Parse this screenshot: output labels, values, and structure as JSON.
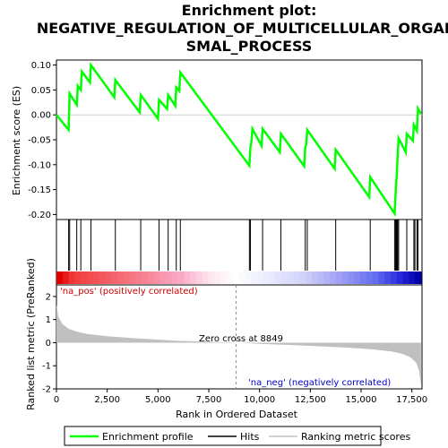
{
  "chart_data": {
    "type": "line",
    "title_lines": [
      "Enrichment plot:",
      "NEGATIVE_REGULATION_OF_MULTICELLULAR_ORGANI",
      "SMAL_PROCESS"
    ],
    "es_panel": {
      "ylabel": "Enrichment score (ES)",
      "ylim": [
        -0.21,
        0.11
      ],
      "yticks": [
        0.1,
        0.05,
        0.0,
        -0.05,
        -0.1,
        -0.15,
        -0.2
      ],
      "ytick_labels": [
        "0.10",
        "0.05",
        "0.00",
        "-0.05",
        "-0.10",
        "-0.15",
        "-0.20"
      ],
      "series": [
        {
          "name": "Enrichment profile",
          "color": "#00ff00",
          "x": [
            0,
            600,
            650,
            1000,
            1050,
            1200,
            1250,
            1650,
            1700,
            2850,
            2900,
            4100,
            4150,
            5000,
            5050,
            5450,
            5500,
            5850,
            5900,
            6050,
            6100,
            9500,
            9550,
            9600,
            9650,
            10100,
            10150,
            11000,
            11050,
            12200,
            12250,
            12300,
            12350,
            13700,
            13750,
            15400,
            15450,
            16650,
            16700,
            16720,
            16760,
            16780,
            16800,
            16850,
            17200,
            17250,
            17550,
            17600,
            17750,
            17800,
            17950
          ],
          "y": [
            0.0,
            -0.03,
            0.043,
            0.02,
            0.058,
            0.05,
            0.087,
            0.065,
            0.1,
            0.035,
            0.07,
            0.005,
            0.04,
            -0.008,
            0.03,
            0.012,
            0.04,
            0.018,
            0.055,
            0.048,
            0.085,
            -0.102,
            -0.065,
            -0.055,
            -0.028,
            -0.062,
            -0.028,
            -0.075,
            -0.038,
            -0.103,
            -0.065,
            -0.06,
            -0.03,
            -0.108,
            -0.07,
            -0.165,
            -0.125,
            -0.198,
            -0.16,
            -0.14,
            -0.12,
            -0.1,
            -0.082,
            -0.047,
            -0.075,
            -0.038,
            -0.052,
            -0.02,
            -0.032,
            0.013,
            0.002
          ]
        }
      ]
    },
    "hits": {
      "name": "Hits",
      "color": "#000000",
      "x": [
        600,
        650,
        1000,
        1200,
        1700,
        2900,
        4150,
        5050,
        5500,
        5900,
        6100,
        9500,
        9550,
        10150,
        11050,
        12250,
        12350,
        13750,
        15450,
        16650,
        16700,
        16720,
        16760,
        16780,
        16800,
        16850,
        17250,
        17600,
        17650,
        17750,
        17800
      ]
    },
    "rank_panel": {
      "ylabel": "Ranked list metric (PreRanked)",
      "ylim": [
        -2.0,
        2.5
      ],
      "yticks": [
        2,
        1,
        0,
        -1,
        -2
      ],
      "ytick_labels": [
        "2",
        "1",
        "0",
        "-1",
        "-2"
      ],
      "series": [
        {
          "name": "Ranking metric scores",
          "color": "#c0c0c0",
          "x": [
            0,
            100,
            300,
            600,
            1000,
            1500,
            2500,
            4000,
            6000,
            8849,
            10000,
            12000,
            14000,
            15500,
            16500,
            17000,
            17400,
            17700,
            17850,
            17950
          ],
          "y": [
            1.65,
            1.1,
            0.8,
            0.6,
            0.48,
            0.38,
            0.28,
            0.18,
            0.08,
            0.0,
            -0.05,
            -0.12,
            -0.2,
            -0.28,
            -0.38,
            -0.48,
            -0.62,
            -0.85,
            -1.2,
            -1.85
          ]
        }
      ],
      "zero_cross_label": "Zero cross at 8849",
      "zero_cross": 8849,
      "pos_label": "'na_pos' (positively correlated)",
      "neg_label": "'na_neg' (negatively correlated)"
    },
    "xaxis": {
      "xlabel": "Rank in Ordered Dataset",
      "xlim": [
        0,
        18000
      ],
      "xticks": [
        0,
        2500,
        5000,
        7500,
        10000,
        12500,
        15000,
        17500
      ],
      "xtick_labels": [
        "0",
        "2,500",
        "5,000",
        "7,500",
        "10,000",
        "12,500",
        "15,000",
        "17,500"
      ]
    },
    "legend": {
      "placement": "bottom",
      "entries": [
        "Enrichment profile",
        "Hits",
        "Ranking metric scores"
      ]
    }
  }
}
